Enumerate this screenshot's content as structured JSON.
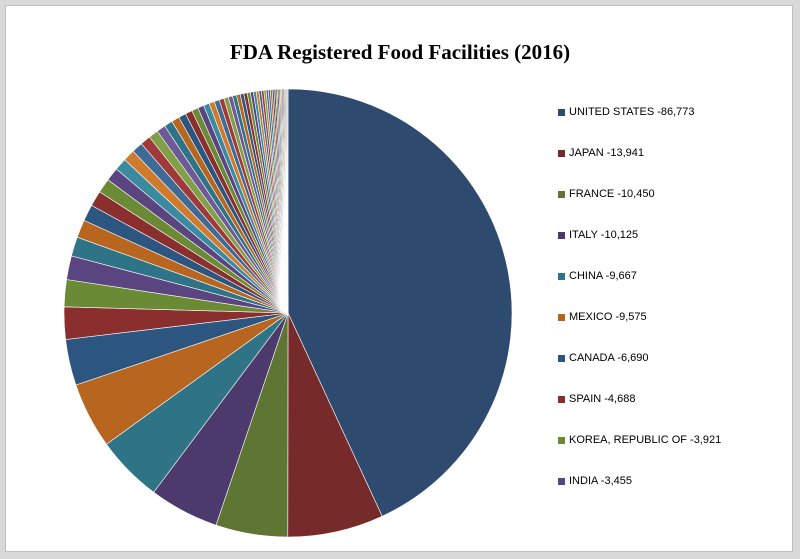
{
  "chart_data": {
    "type": "pie",
    "title": "FDA Registered Food Facilities (2016)",
    "legend_position": "right",
    "slices": [
      {
        "label": "UNITED STATES -86,773",
        "value": 86773,
        "color": "#2e4a6e"
      },
      {
        "label": "JAPAN -13,941",
        "value": 13941,
        "color": "#772a2a"
      },
      {
        "label": "FRANCE -10,450",
        "value": 10450,
        "color": "#5f7533"
      },
      {
        "label": "ITALY -10,125",
        "value": 10125,
        "color": "#4b3a6b"
      },
      {
        "label": "CHINA -9,667",
        "value": 9667,
        "color": "#2f7486"
      },
      {
        "label": "MEXICO -9,575",
        "value": 9575,
        "color": "#b8651f"
      },
      {
        "label": "CANADA -6,690",
        "value": 6690,
        "color": "#2c5680"
      },
      {
        "label": "SPAIN -4,688",
        "value": 4688,
        "color": "#8a2e2e"
      },
      {
        "label": "KOREA, REPUBLIC OF -3,921",
        "value": 3921,
        "color": "#6b8a36"
      },
      {
        "label": "INDIA -3,455",
        "value": 3455,
        "color": "#5a4580"
      }
    ],
    "other_slices_estimated": {
      "values": [
        2800,
        2600,
        2400,
        2250,
        2100,
        1950,
        1800,
        1700,
        1600,
        1500,
        1400,
        1300,
        1220,
        1150,
        1080,
        1010,
        950,
        890,
        840,
        790,
        740,
        700,
        660,
        620,
        580,
        550,
        520,
        490,
        460,
        430,
        410,
        390,
        370,
        350,
        330,
        310,
        290,
        275,
        260,
        245,
        230,
        215,
        200,
        190,
        180,
        170,
        160,
        150,
        140,
        130
      ],
      "palette": [
        "#2f7486",
        "#b8651f",
        "#2c5680",
        "#8a2e2e",
        "#6b8a36",
        "#5a4580",
        "#3a8aa0",
        "#d07a2e",
        "#3d6b96",
        "#a03a3a",
        "#7fa046",
        "#6e5a96"
      ]
    }
  }
}
